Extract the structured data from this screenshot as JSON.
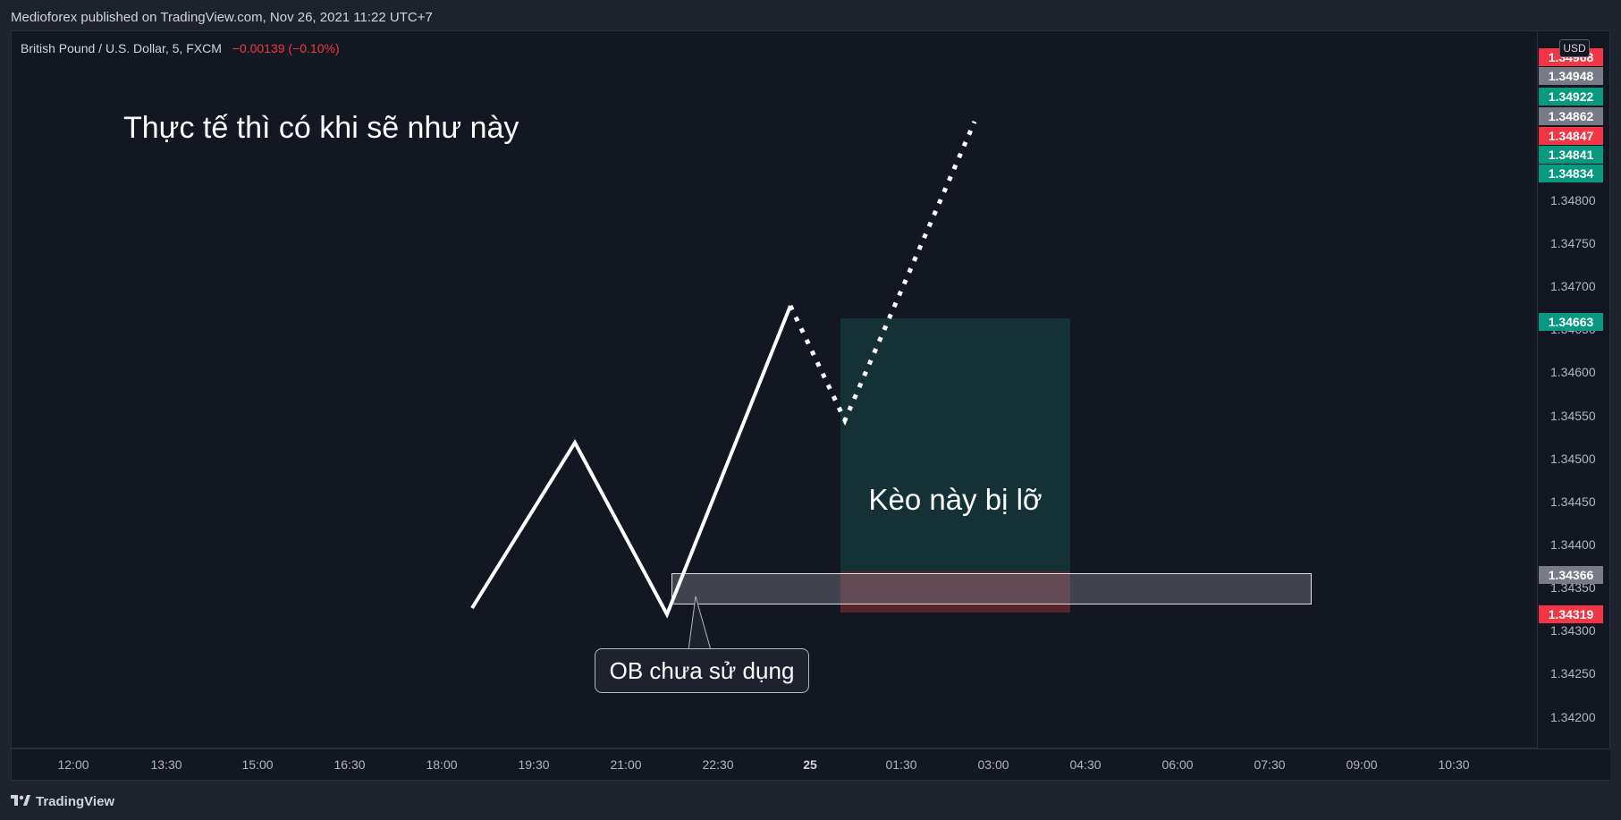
{
  "header": {
    "publish_info": "Medioforex published on TradingView.com, Nov 26, 2021 11:22 UTC+7"
  },
  "symbol": {
    "name": "British Pound / U.S. Dollar, 5, FXCM",
    "change": "−0.00139 (−0.10%)"
  },
  "annotations": {
    "heading": "Thực tế thì có khi sẽ như này",
    "position_label": "Kèo này bị lỡ",
    "ob_callout": "OB chưa sử dụng"
  },
  "price_axis": {
    "currency": "USD",
    "ticks": [
      "1.34800",
      "1.34750",
      "1.34700",
      "1.34650",
      "1.34600",
      "1.34550",
      "1.34500",
      "1.34450",
      "1.34400",
      "1.34350",
      "1.34300",
      "1.34250",
      "1.34200"
    ],
    "tags": [
      {
        "label": "1.34968",
        "color": "#f23645"
      },
      {
        "label": "1.34948",
        "color": "#787b86"
      },
      {
        "label": "1.34922",
        "color": "#089981"
      },
      {
        "label": "1.34862",
        "color": "#787b86"
      },
      {
        "label": "1.34847",
        "color": "#f23645"
      },
      {
        "label": "1.34841",
        "color": "#089981"
      },
      {
        "label": "1.34834",
        "color": "#089981"
      },
      {
        "label": "1.34663",
        "color": "#089981"
      },
      {
        "label": "1.34366",
        "color": "#787b86"
      },
      {
        "label": "1.34319",
        "color": "#f23645"
      }
    ]
  },
  "time_axis": {
    "ticks": [
      "12:00",
      "13:30",
      "15:00",
      "16:30",
      "18:00",
      "19:30",
      "21:00",
      "22:30",
      "25",
      "01:30",
      "03:00",
      "04:30",
      "06:00",
      "07:30",
      "09:00",
      "10:30"
    ]
  },
  "footer": {
    "brand": "TradingView"
  },
  "colors": {
    "background": "#131722",
    "position_fill": "#164846",
    "stop_fill": "#8c3034",
    "ob_fill": "#787b86",
    "down": "#f23645",
    "up": "#089981",
    "path_line": "#ffffff"
  }
}
